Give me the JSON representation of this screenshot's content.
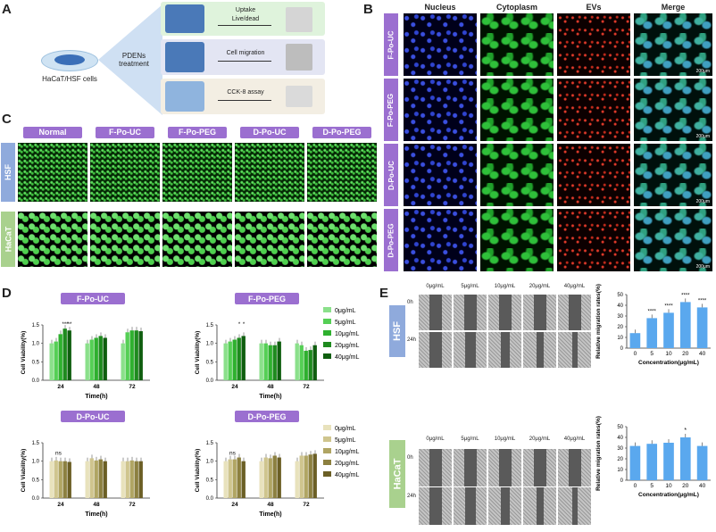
{
  "panelA": {
    "letter": "A",
    "dish_label": "HaCaT/HSF cells",
    "treatment_line1": "PDENs",
    "treatment_line2": "treatment",
    "rows": [
      {
        "line1": "Uptake",
        "line2": "Live/dead"
      },
      {
        "line1": "Cell migration",
        "line2": ""
      },
      {
        "line1": "CCK-8 assay",
        "line2": ""
      }
    ]
  },
  "panelB": {
    "letter": "B",
    "columns": [
      "Nucleus",
      "Cytoplasm",
      "EVs",
      "Merge"
    ],
    "rows": [
      "F-Po-UC",
      "F-Po-PEG",
      "D-Po-UC",
      "D-Po-PEG"
    ],
    "scale": "200μm"
  },
  "panelC": {
    "letter": "C",
    "columns": [
      "Normal",
      "F-Po-UC",
      "F-Po-PEG",
      "D-Po-UC",
      "D-Po-PEG"
    ],
    "rows": [
      "HSF",
      "HaCaT"
    ]
  },
  "panelD": {
    "letter": "D"
  },
  "panelE": {
    "letter": "E",
    "concs": [
      "0μg/mL",
      "5μg/mL",
      "10μg/mL",
      "20μg/mL",
      "40μg/mL"
    ],
    "times": [
      "0h",
      "24h"
    ],
    "cells": [
      "HSF",
      "HaCaT"
    ]
  },
  "colors": {
    "purple": "#9b6fd0",
    "hsf_blue": "#8faadc",
    "hacat_green": "#a9d18e",
    "bar_blue": "#5aa8ee",
    "green_series": [
      "#8be08b",
      "#55cf55",
      "#2eb02e",
      "#1e8a1e",
      "#0f5e0f"
    ],
    "khaki_series": [
      "#e8e2bc",
      "#cfc58e",
      "#b0a563",
      "#8c8040",
      "#6b5f25"
    ]
  },
  "chart_data": [
    {
      "type": "bar",
      "title": "F-Po-UC",
      "xlabel": "Time(h)",
      "ylabel": "Cell Viability(%)",
      "categories": [
        "24",
        "48",
        "72"
      ],
      "ylim": [
        0,
        1.5
      ],
      "yticks": [
        "0.0",
        "0.5",
        "1.0",
        "1.5"
      ],
      "series": [
        {
          "name": "0μg/mL",
          "values": [
            1.0,
            1.0,
            1.0
          ]
        },
        {
          "name": "5μg/mL",
          "values": [
            1.05,
            1.1,
            1.3
          ]
        },
        {
          "name": "10μg/mL",
          "values": [
            1.25,
            1.15,
            1.35
          ]
        },
        {
          "name": "20μg/mL",
          "values": [
            1.4,
            1.2,
            1.35
          ]
        },
        {
          "name": "40μg/mL",
          "values": [
            1.35,
            1.15,
            1.33
          ]
        }
      ],
      "annotations": [
        "***",
        "**"
      ],
      "legend": "right"
    },
    {
      "type": "bar",
      "title": "F-Po-PEG",
      "xlabel": "Time(h)",
      "ylabel": "Cell Viability(%)",
      "categories": [
        "24",
        "48",
        "72"
      ],
      "ylim": [
        0,
        1.5
      ],
      "yticks": [
        "0.0",
        "0.5",
        "1.0",
        "1.5"
      ],
      "series": [
        {
          "name": "0μg/mL",
          "values": [
            1.0,
            1.0,
            1.0
          ]
        },
        {
          "name": "5μg/mL",
          "values": [
            1.05,
            1.0,
            0.95
          ]
        },
        {
          "name": "10μg/mL",
          "values": [
            1.1,
            0.95,
            0.8
          ]
        },
        {
          "name": "20μg/mL",
          "values": [
            1.15,
            0.95,
            0.82
          ]
        },
        {
          "name": "40μg/mL",
          "values": [
            1.2,
            1.05,
            0.95
          ]
        }
      ],
      "annotations": [
        "*",
        "*"
      ],
      "legend": "right"
    },
    {
      "type": "bar",
      "title": "D-Po-UC",
      "xlabel": "Time(h)",
      "ylabel": "Cell Viability(%)",
      "categories": [
        "24",
        "48",
        "72"
      ],
      "ylim": [
        0,
        1.5
      ],
      "yticks": [
        "0.0",
        "0.5",
        "1.0",
        "1.5"
      ],
      "series": [
        {
          "name": "0μg/mL",
          "values": [
            1.0,
            1.0,
            1.0
          ]
        },
        {
          "name": "5μg/mL",
          "values": [
            1.02,
            1.08,
            1.0
          ]
        },
        {
          "name": "10μg/mL",
          "values": [
            1.0,
            1.02,
            1.02
          ]
        },
        {
          "name": "20μg/mL",
          "values": [
            1.0,
            1.05,
            1.0
          ]
        },
        {
          "name": "40μg/mL",
          "values": [
            0.98,
            1.0,
            1.0
          ]
        }
      ],
      "annotations": [
        "ns"
      ],
      "legend": "right"
    },
    {
      "type": "bar",
      "title": "D-Po-PEG",
      "xlabel": "Time(h)",
      "ylabel": "Cell Viability(%)",
      "categories": [
        "24",
        "48",
        "72"
      ],
      "ylim": [
        0,
        1.5
      ],
      "yticks": [
        "0.0",
        "0.5",
        "1.0",
        "1.5"
      ],
      "series": [
        {
          "name": "0μg/mL",
          "values": [
            1.0,
            1.0,
            1.0
          ]
        },
        {
          "name": "5μg/mL",
          "values": [
            1.05,
            1.1,
            1.15
          ]
        },
        {
          "name": "10μg/mL",
          "values": [
            1.05,
            1.08,
            1.15
          ]
        },
        {
          "name": "20μg/mL",
          "values": [
            1.1,
            1.15,
            1.18
          ]
        },
        {
          "name": "40μg/mL",
          "values": [
            1.0,
            1.1,
            1.2
          ]
        }
      ],
      "annotations": [
        "ns"
      ],
      "legend": "right"
    },
    {
      "type": "bar",
      "title": "",
      "xlabel": "Concentration(μg/mL)",
      "ylabel": "Relative migration rates(%)",
      "categories": [
        "0",
        "5",
        "10",
        "20",
        "40"
      ],
      "values": [
        14,
        28,
        33,
        43,
        38
      ],
      "ylim": [
        0,
        50
      ],
      "yticks": [
        "0",
        "10",
        "20",
        "30",
        "40",
        "50"
      ],
      "annotations": [
        "****",
        "****",
        "****",
        "****"
      ]
    },
    {
      "type": "bar",
      "title": "",
      "xlabel": "Concentration(μg/mL)",
      "ylabel": "Relative migration rates(%)",
      "categories": [
        "0",
        "5",
        "10",
        "20",
        "40"
      ],
      "values": [
        32,
        34,
        35,
        40,
        32
      ],
      "ylim": [
        0,
        50
      ],
      "yticks": [
        "0",
        "10",
        "20",
        "30",
        "40",
        "50"
      ],
      "annotations": [
        "*"
      ]
    }
  ]
}
